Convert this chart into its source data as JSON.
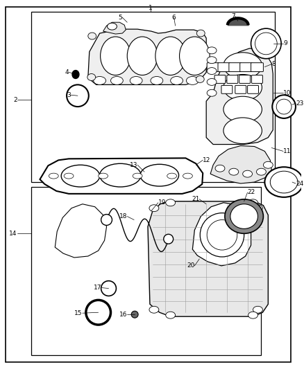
{
  "bg_color": "#ffffff",
  "line_color": "#000000",
  "text_color": "#000000",
  "fig_width": 4.38,
  "fig_height": 5.33
}
